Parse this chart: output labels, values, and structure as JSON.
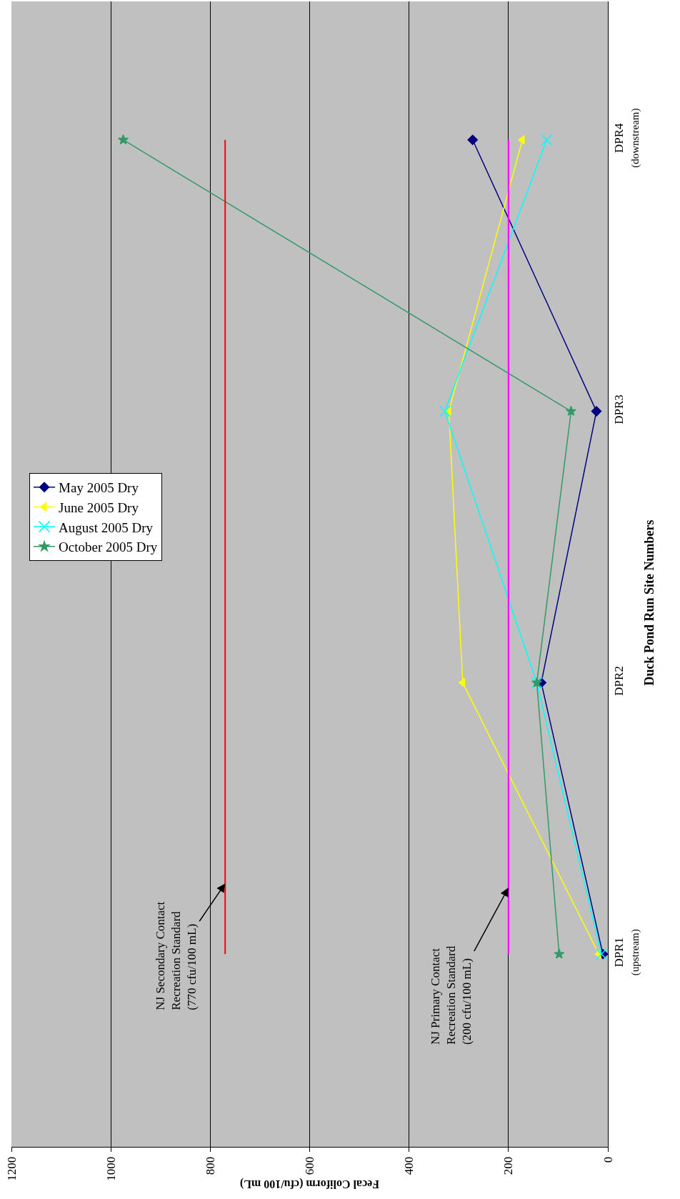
{
  "chart_data": {
    "type": "line",
    "orientation": "horizontal",
    "xlabel": "Fecal Coliform (cfu/100 mL)",
    "ylabel": "Duck Pond Run Site Numbers",
    "categories": [
      "DPR4\n(downstream)",
      "DPR3",
      "DPR2",
      "DPR1\n(upstream)"
    ],
    "series": [
      {
        "name": "May 2005 Dry",
        "color": "#000080",
        "marker": "diamond",
        "values": [
          272,
          23,
          134,
          10
        ]
      },
      {
        "name": "June 2005 Dry",
        "color": "#ffff00",
        "marker": "triangle",
        "values": [
          172,
          320,
          292,
          18
        ]
      },
      {
        "name": "August 2005 Dry",
        "color": "#00ffff",
        "marker": "cross",
        "values": [
          123,
          328,
          143,
          13
        ]
      },
      {
        "name": "October 2005 Dry",
        "color": "#339966",
        "marker": "star",
        "values": [
          975,
          74,
          143,
          98
        ]
      }
    ],
    "xlim": [
      1200,
      0
    ],
    "xticks": [
      0,
      200,
      400,
      600,
      800,
      1000,
      1200
    ],
    "grid": "x",
    "legend": "left",
    "ref_lines": [
      {
        "axis": "x",
        "value": 770,
        "label": "NJ Secondary Contact\nRecreation Standard\n(770 cfu/100 mL)",
        "color": "#ff0000"
      },
      {
        "axis": "x",
        "value": 200,
        "label": "NJ Primary Contact\nRecreation Standard\n(200 cfu/100 mL)",
        "color": "#ff00ff"
      }
    ]
  }
}
